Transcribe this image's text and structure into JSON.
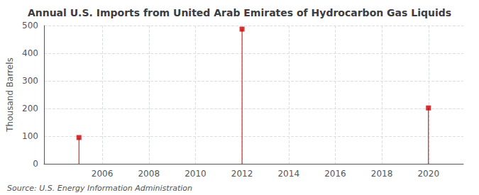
{
  "chart_data": {
    "type": "stem",
    "title": "Annual U.S. Imports from United Arab Emirates of Hydrocarbon Gas Liquids",
    "ylabel": "Thousand Barrels",
    "annotations": [
      "Source: U.S. Energy Information Administration"
    ],
    "x": [
      2005,
      2012,
      2020
    ],
    "values": [
      95,
      487,
      202
    ],
    "color": "#cc0000",
    "marker": "square",
    "xlim": [
      2003.5,
      2021.5
    ],
    "xticks": [
      2006,
      2008,
      2010,
      2012,
      2014,
      2016,
      2018,
      2020
    ],
    "ylim": [
      0,
      500
    ],
    "yticks": [
      0,
      100,
      200,
      300,
      400,
      500
    ],
    "grid": true
  }
}
